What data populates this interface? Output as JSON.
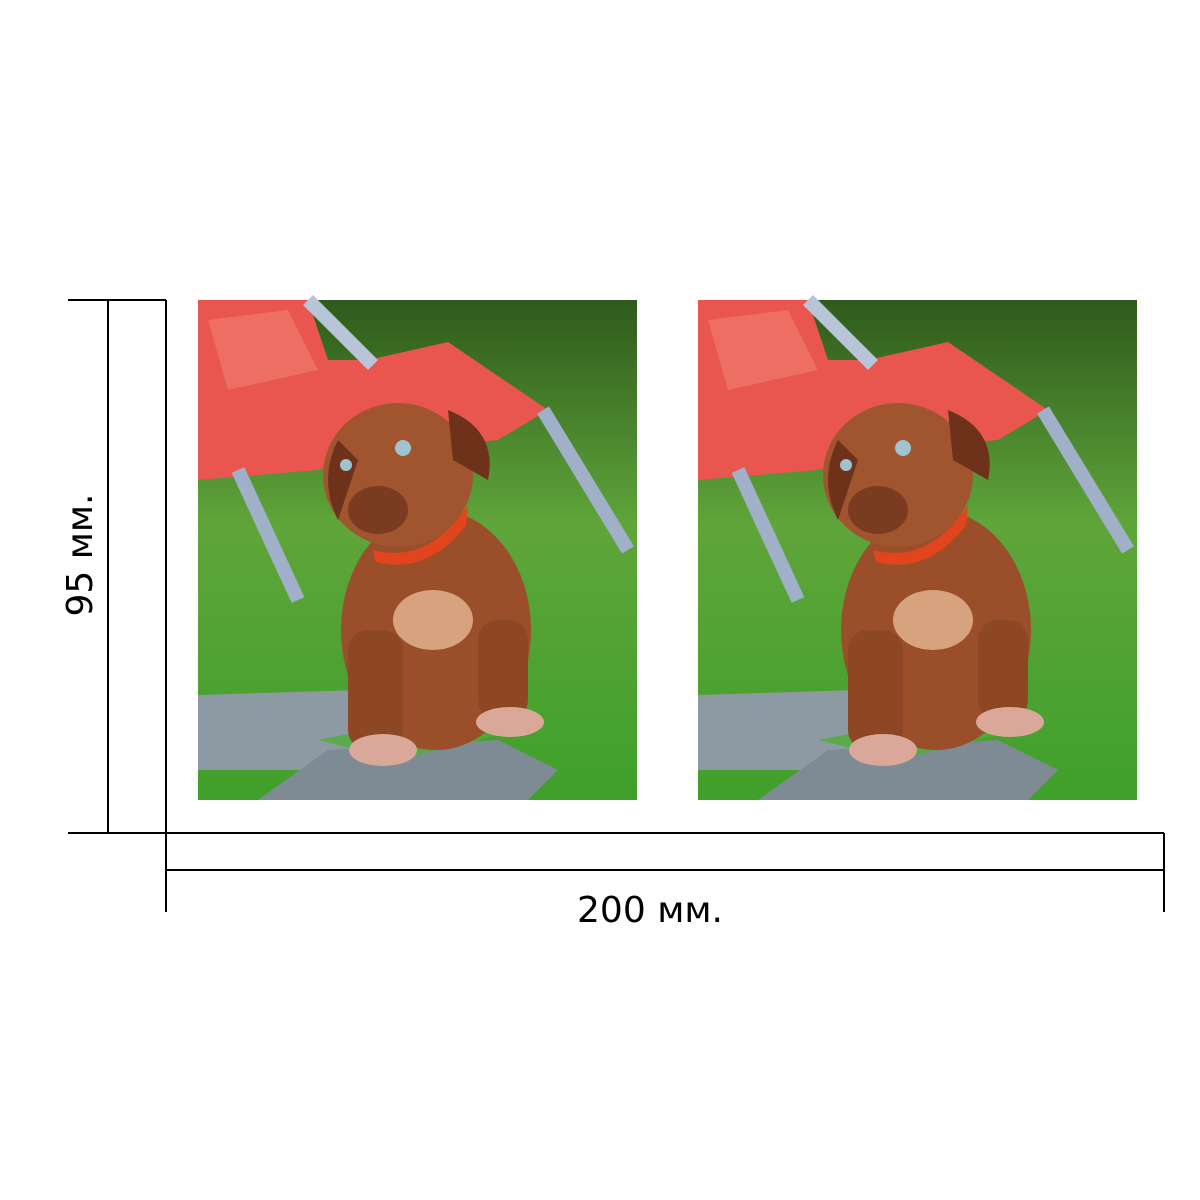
{
  "dimensions": {
    "height": "95 мм.",
    "width": "200 мм."
  }
}
